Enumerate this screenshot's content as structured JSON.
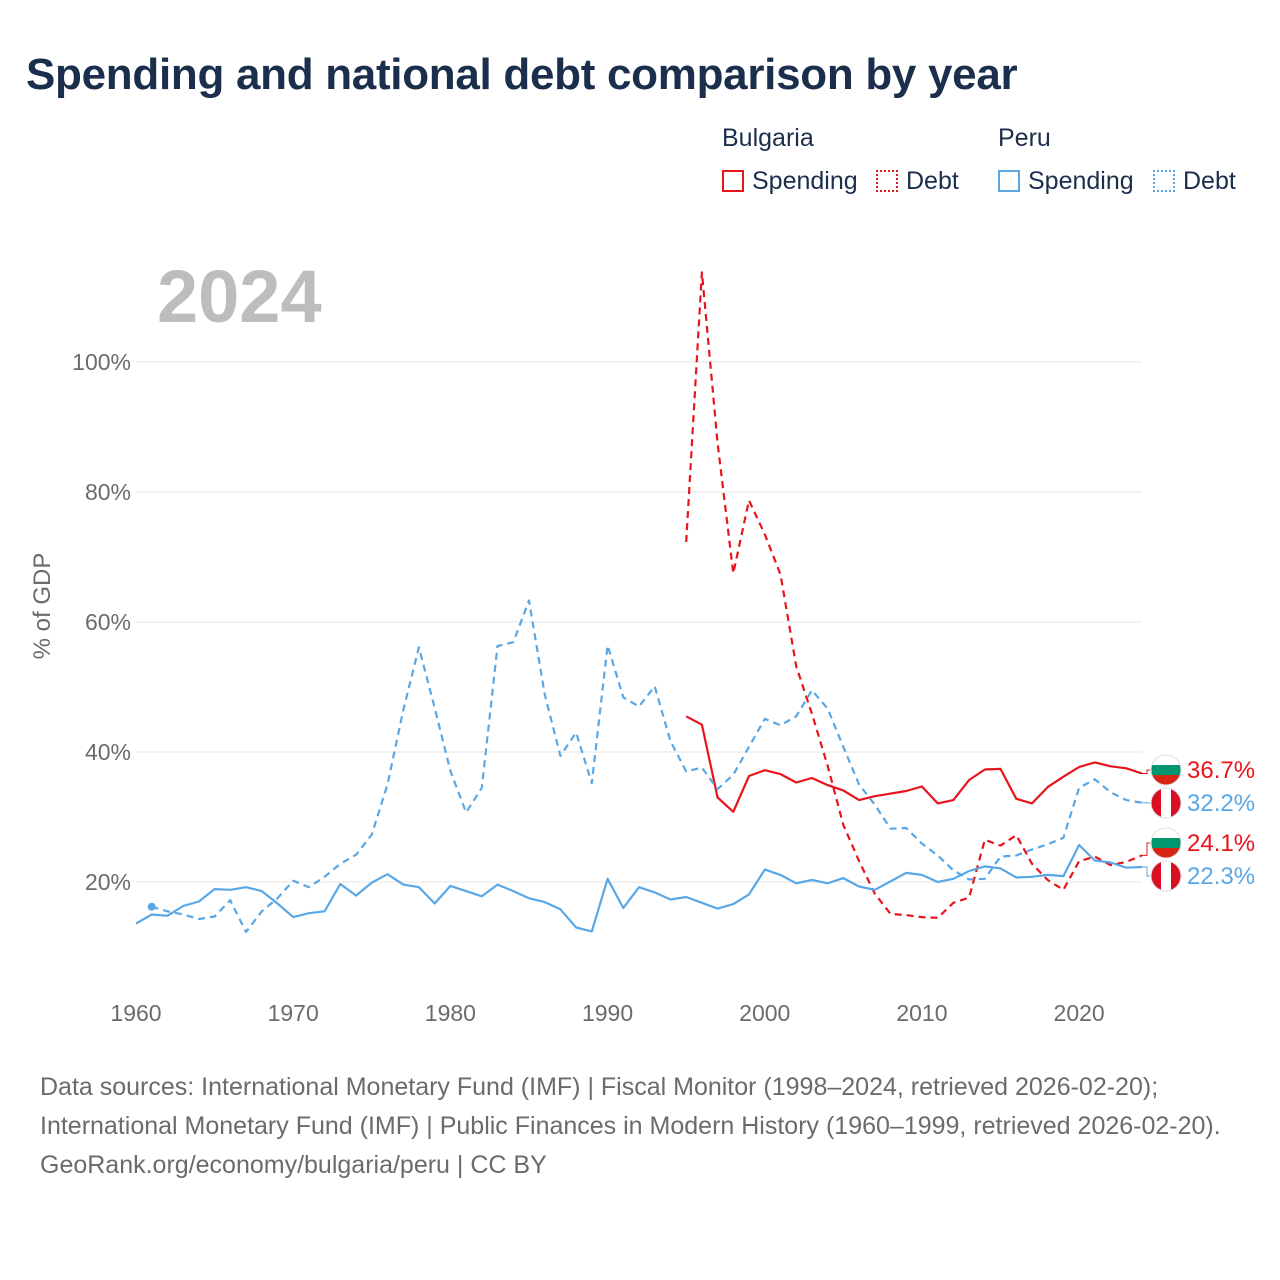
{
  "title": "Spending and national debt comparison by year",
  "legend": {
    "groups": [
      {
        "name": "Bulgaria",
        "items": [
          "Spending",
          "Debt"
        ]
      },
      {
        "name": "Peru",
        "items": [
          "Spending",
          "Debt"
        ]
      }
    ]
  },
  "colors": {
    "bulgaria": "#e8141b",
    "peru": "#5aa7e6",
    "grid": "#e6e6e6",
    "axis_text": "#6b6b6b",
    "year_watermark": "#bdbdbd"
  },
  "chart_data": {
    "type": "line",
    "year_label": "2024",
    "ylabel": "% of GDP",
    "xlim": [
      1960,
      2024
    ],
    "ylim": [
      10,
      110
    ],
    "x_ticks": [
      "1960",
      "1970",
      "1980",
      "1990",
      "2000",
      "2010",
      "2020"
    ],
    "y_ticks": [
      "20%",
      "40%",
      "60%",
      "80%",
      "100%"
    ],
    "series": [
      {
        "name": "Bulgaria Spending",
        "country": "Bulgaria",
        "metric": "Spending",
        "style": "solid",
        "color": "#e8141b",
        "x": [
          1995,
          1996,
          1997,
          1998,
          1999,
          2000,
          2001,
          2002,
          2003,
          2004,
          2005,
          2006,
          2007,
          2008,
          2009,
          2010,
          2011,
          2012,
          2013,
          2014,
          2015,
          2016,
          2017,
          2018,
          2019,
          2020,
          2021,
          2022,
          2023,
          2024
        ],
        "values": [
          45.5,
          44.2,
          33.0,
          30.8,
          36.3,
          37.2,
          36.6,
          35.3,
          36.0,
          34.9,
          34.1,
          32.6,
          33.2,
          33.6,
          34.0,
          34.7,
          32.1,
          32.6,
          35.7,
          37.3,
          37.4,
          32.8,
          32.1,
          34.6,
          36.2,
          37.7,
          38.4,
          37.8,
          37.5,
          36.7
        ],
        "end_label": "36.7%"
      },
      {
        "name": "Bulgaria Debt",
        "country": "Bulgaria",
        "metric": "Debt",
        "style": "dashed",
        "color": "#e8141b",
        "x": [
          1995,
          1996,
          1997,
          1998,
          1999,
          2000,
          2001,
          2002,
          2003,
          2004,
          2005,
          2006,
          2007,
          2008,
          2009,
          2010,
          2011,
          2012,
          2013,
          2014,
          2015,
          2016,
          2017,
          2018,
          2019,
          2020,
          2021,
          2022,
          2023,
          2024
        ],
        "values": [
          72.3,
          113.8,
          87.5,
          67.5,
          78.7,
          73.5,
          67.3,
          53.2,
          45.9,
          37.9,
          28.8,
          23.2,
          18.2,
          15.1,
          14.9,
          14.6,
          14.5,
          16.8,
          17.6,
          26.5,
          25.6,
          27.2,
          22.8,
          20.3,
          18.8,
          23.2,
          23.9,
          22.6,
          23.1,
          24.1
        ],
        "end_label": "24.1%"
      },
      {
        "name": "Peru Spending",
        "country": "Peru",
        "metric": "Spending",
        "style": "solid",
        "color": "#5aa7e6",
        "x": [
          1960,
          1961,
          1962,
          1963,
          1964,
          1965,
          1966,
          1967,
          1968,
          1969,
          1970,
          1971,
          1972,
          1973,
          1974,
          1975,
          1976,
          1977,
          1978,
          1979,
          1980,
          1981,
          1982,
          1983,
          1984,
          1985,
          1986,
          1987,
          1988,
          1989,
          1990,
          1991,
          1992,
          1993,
          1994,
          1995,
          1996,
          1997,
          1998,
          1999,
          2000,
          2001,
          2002,
          2003,
          2004,
          2005,
          2006,
          2007,
          2008,
          2009,
          2010,
          2011,
          2012,
          2013,
          2014,
          2015,
          2016,
          2017,
          2018,
          2019,
          2020,
          2021,
          2022,
          2023,
          2024
        ],
        "values": [
          13.6,
          15.0,
          14.8,
          16.3,
          17.0,
          18.9,
          18.8,
          19.2,
          18.6,
          16.7,
          14.6,
          15.2,
          15.5,
          19.7,
          17.9,
          19.9,
          21.2,
          19.6,
          19.2,
          16.7,
          19.4,
          18.6,
          17.8,
          19.6,
          18.6,
          17.5,
          16.9,
          15.8,
          13.0,
          12.4,
          20.5,
          16.0,
          19.2,
          18.4,
          17.3,
          17.7,
          16.8,
          15.9,
          16.6,
          18.1,
          21.9,
          21.1,
          19.8,
          20.3,
          19.8,
          20.6,
          19.3,
          18.8,
          20.1,
          21.4,
          21.1,
          20.0,
          20.5,
          21.7,
          22.4,
          22.1,
          20.7,
          20.8,
          21.1,
          20.9,
          25.7,
          23.3,
          23.0,
          22.2,
          22.3
        ],
        "end_label": "22.3%"
      },
      {
        "name": "Peru Debt",
        "country": "Peru",
        "metric": "Debt",
        "style": "dashed",
        "color": "#5aa7e6",
        "x": [
          1961,
          1962,
          1963,
          1964,
          1965,
          1966,
          1967,
          1968,
          1969,
          1970,
          1971,
          1972,
          1973,
          1974,
          1975,
          1976,
          1977,
          1978,
          1979,
          1980,
          1981,
          1982,
          1983,
          1984,
          1985,
          1986,
          1987,
          1988,
          1989,
          1990,
          1991,
          1992,
          1993,
          1994,
          1995,
          1996,
          1997,
          1998,
          1999,
          2000,
          2001,
          2002,
          2003,
          2004,
          2005,
          2006,
          2007,
          2008,
          2009,
          2010,
          2011,
          2012,
          2013,
          2014,
          2015,
          2016,
          2017,
          2018,
          2019,
          2020,
          2021,
          2022,
          2023,
          2024
        ],
        "values": [
          16.2,
          15.5,
          15.0,
          14.3,
          14.7,
          17.2,
          12.3,
          15.5,
          17.5,
          20.2,
          19.2,
          20.8,
          22.8,
          24.2,
          27.3,
          35.0,
          46.4,
          56.1,
          46.8,
          37.1,
          30.7,
          34.5,
          56.3,
          56.9,
          63.3,
          48.9,
          39.4,
          43.0,
          35.2,
          56.4,
          48.4,
          47.0,
          50.1,
          41.7,
          37.0,
          37.6,
          34.3,
          36.5,
          40.8,
          45.1,
          44.1,
          45.5,
          49.5,
          46.7,
          40.8,
          35.0,
          31.9,
          28.2,
          28.3,
          25.9,
          24.1,
          21.8,
          20.4,
          20.5,
          23.9,
          24.1,
          25.0,
          25.8,
          26.8,
          34.5,
          35.8,
          33.8,
          32.6,
          32.2
        ],
        "end_label": "32.2%"
      }
    ]
  },
  "footer": {
    "sources": "Data sources: International Monetary Fund (IMF) | Fiscal Monitor (1998–2024, retrieved 2026-02-20); International Monetary Fund (IMF) | Public Finances in Modern History (1960–1999, retrieved 2026-02-20).",
    "credit": "GeoRank.org/economy/bulgaria/peru | CC BY"
  }
}
